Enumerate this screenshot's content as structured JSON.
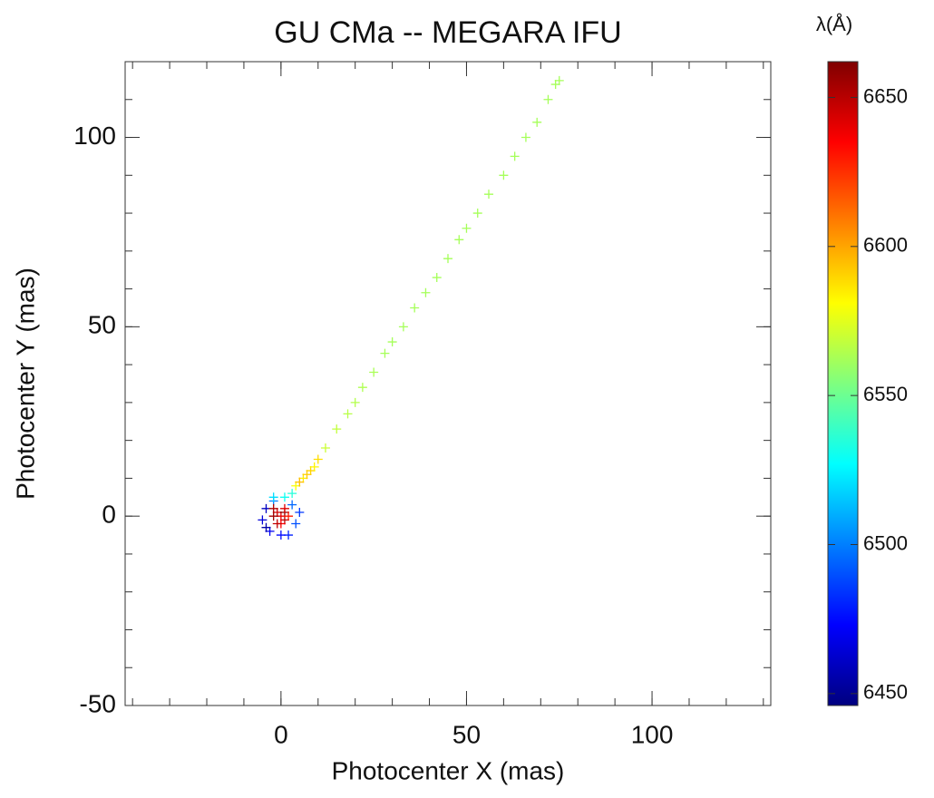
{
  "chart_data": {
    "type": "scatter",
    "title": "GU CMa -- MEGARA IFU",
    "x_label": "Photocenter X (mas)",
    "y_label": "Photocenter Y (mas)",
    "colorbar_label": "λ(Å)",
    "xlim": [
      -42,
      132
    ],
    "ylim": [
      -50,
      120
    ],
    "xticks": [
      0,
      50,
      100
    ],
    "yticks": [
      -50,
      0,
      50,
      100
    ],
    "clim": [
      6446,
      6662
    ],
    "cticks": [
      6450,
      6500,
      6550,
      6600,
      6650
    ],
    "colormap": [
      "#00007f",
      "#0000ff",
      "#007fff",
      "#00ffff",
      "#7fff7f",
      "#ffff00",
      "#ff7f00",
      "#ff0000",
      "#7f0000"
    ],
    "marker": "plus",
    "x": [
      -4,
      -3,
      2,
      4,
      -5,
      0,
      3,
      -2,
      5,
      -4,
      -2,
      1,
      3,
      4,
      6,
      8,
      5,
      10,
      7,
      9,
      12,
      15,
      18,
      20,
      22,
      25,
      28,
      30,
      33,
      36,
      39,
      42,
      45,
      48,
      50,
      53,
      56,
      60,
      63,
      66,
      69,
      72,
      74,
      75,
      0,
      -1,
      1,
      -2,
      1,
      0,
      2,
      -1,
      -2,
      1
    ],
    "y": [
      2,
      -4,
      -5,
      -2,
      -1,
      -5,
      3,
      4,
      1,
      -3,
      5,
      5,
      6,
      8,
      10,
      12,
      9,
      15,
      11,
      13,
      18,
      23,
      27,
      30,
      34,
      38,
      43,
      46,
      50,
      55,
      59,
      63,
      68,
      73,
      76,
      80,
      85,
      90,
      95,
      100,
      104,
      110,
      114,
      115,
      0,
      1,
      -1,
      0,
      1,
      -2,
      0,
      -2,
      2,
      2
    ],
    "wavelength": [
      6460,
      6470,
      6480,
      6490,
      6465,
      6475,
      6495,
      6500,
      6485,
      6455,
      6520,
      6530,
      6535,
      6580,
      6585,
      6590,
      6595,
      6588,
      6592,
      6583,
      6570,
      6568,
      6566,
      6565,
      6564,
      6563,
      6562,
      6562,
      6562,
      6562,
      6562,
      6562,
      6562,
      6562,
      6562,
      6562,
      6562,
      6562,
      6562,
      6562,
      6562,
      6562,
      6562,
      6562,
      6640,
      6645,
      6650,
      6655,
      6660,
      6635,
      6630,
      6648,
      6652,
      6642
    ]
  }
}
